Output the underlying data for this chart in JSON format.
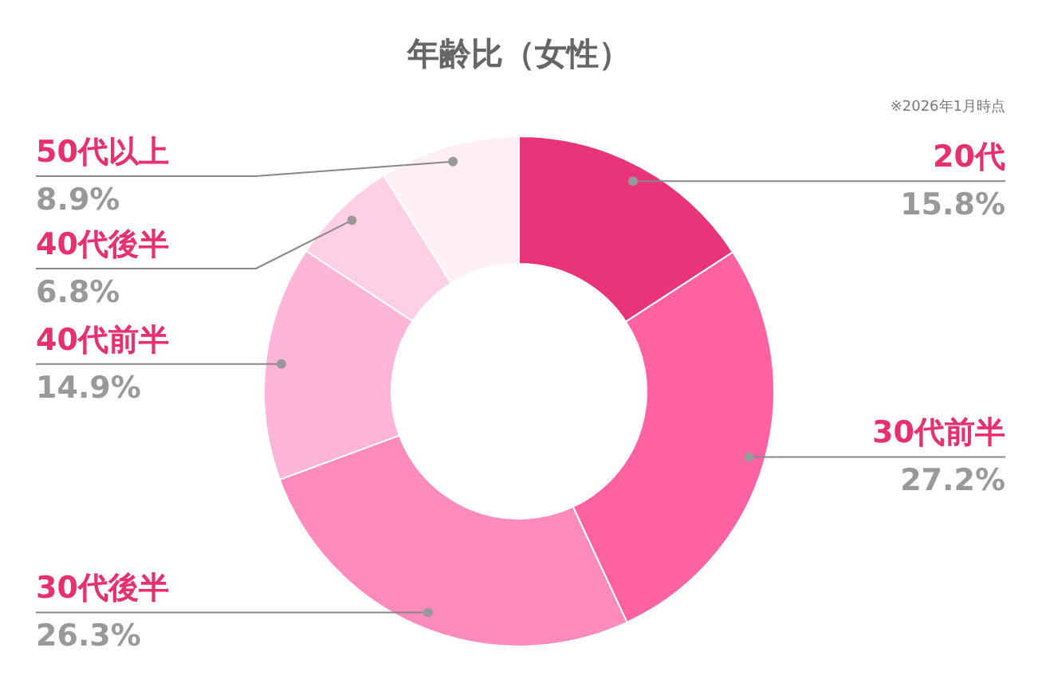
{
  "chart_data": {
    "type": "donut",
    "title": "年齢比（女性）",
    "annotations": [
      "※2026年1月時点"
    ],
    "categories": [
      "20代",
      "30代前半",
      "30代後半",
      "40代前半",
      "40代後半",
      "50代以上"
    ],
    "values": [
      15.8,
      27.2,
      26.3,
      14.9,
      6.8,
      8.9
    ],
    "value_labels": [
      "15.8%",
      "27.2%",
      "26.3%",
      "14.9%",
      "6.8%",
      "8.9%"
    ],
    "colors": [
      "#e9347a",
      "#ff62a3",
      "#ff8abd",
      "#ffb5da",
      "#ffd0e4",
      "#fff0f5"
    ]
  }
}
